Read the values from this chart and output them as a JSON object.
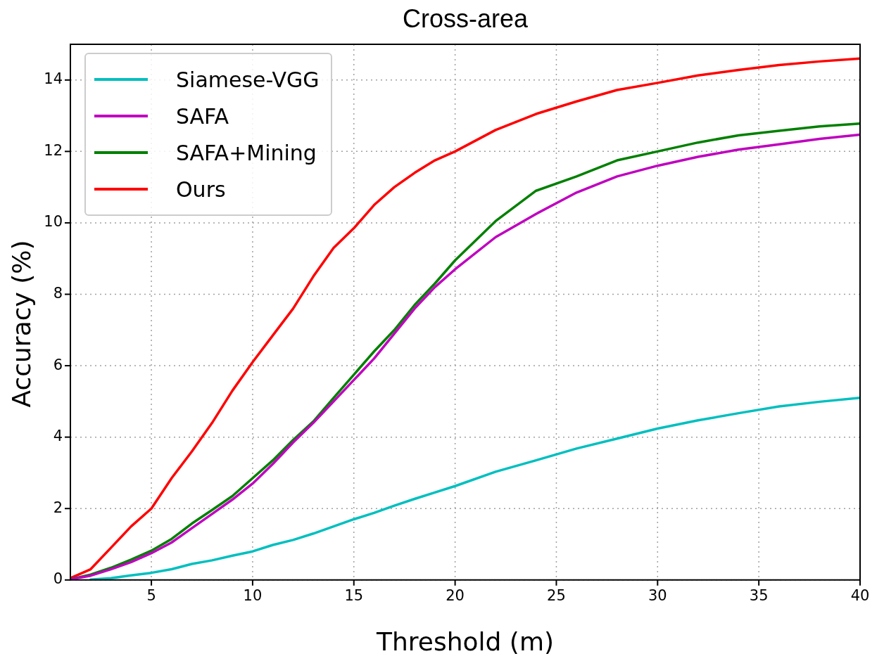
{
  "chart_data": {
    "type": "line",
    "title": "Cross-area",
    "xlabel": "Threshold (m)",
    "ylabel": "Accuracy (%)",
    "x": [
      1,
      2,
      3,
      4,
      5,
      6,
      7,
      8,
      9,
      10,
      11,
      12,
      13,
      14,
      15,
      16,
      17,
      18,
      19,
      20,
      22,
      24,
      26,
      28,
      30,
      32,
      34,
      36,
      38,
      40
    ],
    "series": [
      {
        "name": "Siamese-VGG",
        "color": "#00bfbf",
        "values": [
          null,
          0.01,
          0.05,
          0.13,
          0.2,
          0.3,
          0.45,
          0.55,
          0.68,
          0.8,
          0.98,
          1.12,
          1.3,
          1.5,
          1.7,
          1.88,
          2.08,
          2.27,
          2.45,
          2.63,
          3.03,
          3.35,
          3.68,
          3.96,
          4.24,
          4.47,
          4.67,
          4.86,
          4.99,
          5.1
        ]
      },
      {
        "name": "SAFA",
        "color": "#bf00bf",
        "values": [
          0.02,
          0.12,
          0.3,
          0.5,
          0.75,
          1.05,
          1.45,
          1.85,
          2.25,
          2.7,
          3.25,
          3.85,
          4.4,
          5.0,
          5.6,
          6.2,
          6.9,
          7.6,
          8.2,
          8.7,
          9.6,
          10.25,
          10.85,
          11.3,
          11.6,
          11.85,
          12.05,
          12.2,
          12.35,
          12.47
        ]
      },
      {
        "name": "SAFA+Mining",
        "color": "#008000",
        "values": [
          0.02,
          0.15,
          0.34,
          0.57,
          0.82,
          1.15,
          1.58,
          1.96,
          2.35,
          2.85,
          3.35,
          3.92,
          4.44,
          5.1,
          5.75,
          6.4,
          7.0,
          7.7,
          8.3,
          8.95,
          10.05,
          10.9,
          11.3,
          11.75,
          12.0,
          12.25,
          12.45,
          12.58,
          12.7,
          12.78
        ]
      },
      {
        "name": "Ours",
        "color": "#ff0000",
        "values": [
          0.05,
          0.3,
          0.9,
          1.5,
          2.0,
          2.85,
          3.6,
          4.4,
          5.3,
          6.1,
          6.85,
          7.6,
          8.5,
          9.3,
          9.85,
          10.5,
          11.0,
          11.4,
          11.75,
          12.0,
          12.6,
          13.05,
          13.4,
          13.72,
          13.92,
          14.13,
          14.28,
          14.42,
          14.52,
          14.6
        ]
      }
    ],
    "xlim": [
      1,
      40
    ],
    "xticks": [
      5,
      10,
      15,
      20,
      25,
      30,
      35,
      40
    ],
    "ylim": [
      0,
      15
    ],
    "yticks": [
      0,
      2,
      4,
      6,
      8,
      10,
      12,
      14
    ],
    "grid": true,
    "legend": "top left",
    "marker": "none",
    "line_style": "solid"
  }
}
